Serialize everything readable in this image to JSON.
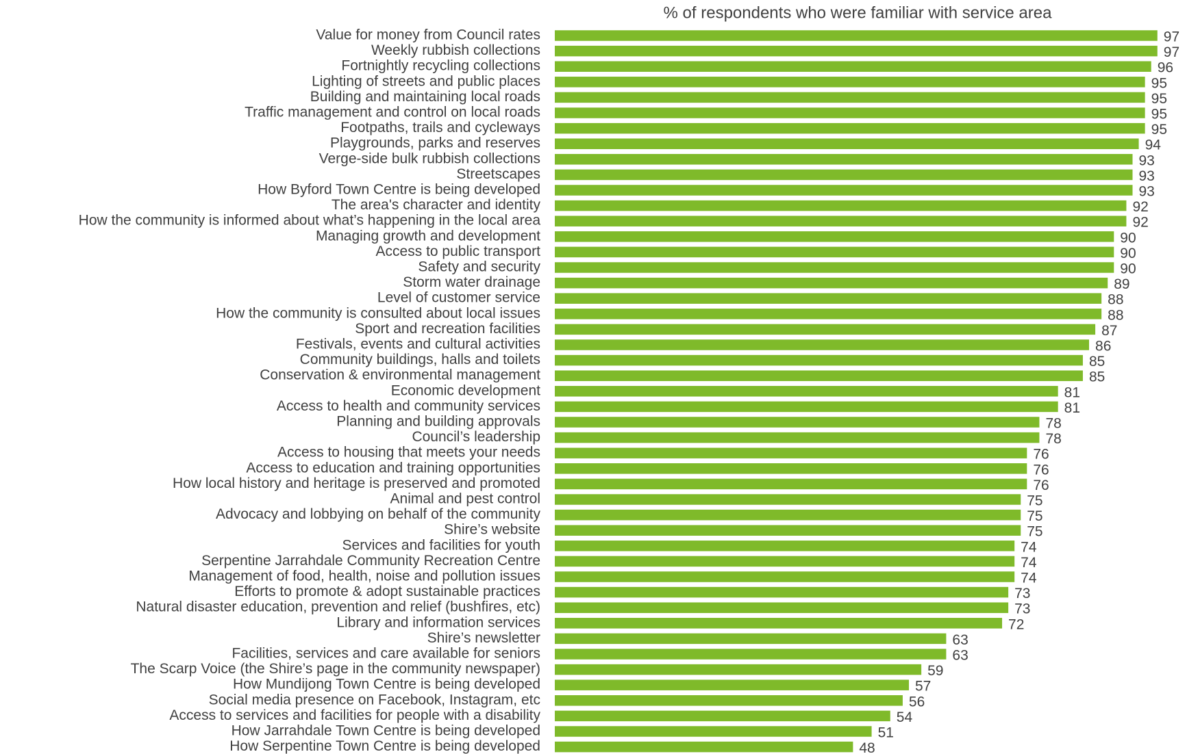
{
  "chart_data": {
    "type": "bar",
    "orientation": "horizontal",
    "title": "% of respondents who were familiar with service area",
    "color": "#7fba2a",
    "categories": [
      "Value for money from Council rates",
      "Weekly rubbish collections",
      "Fortnightly recycling collections",
      "Lighting of streets and public places",
      "Building and maintaining local roads",
      "Traffic management and control on local roads",
      "Footpaths, trails and cycleways",
      "Playgrounds, parks and reserves",
      "Verge-side bulk rubbish collections",
      "Streetscapes",
      "How Byford Town Centre is being developed",
      "The area's character and identity",
      "How the community is informed about what’s happening in the local area",
      "Managing growth and development",
      "Access to public transport",
      "Safety and security",
      "Storm water drainage",
      "Level of customer service",
      "How the community is consulted about local issues",
      "Sport and recreation facilities",
      "Festivals, events and cultural activities",
      "Community buildings, halls and toilets",
      "Conservation & environmental management",
      "Economic development",
      "Access to health and community services",
      "Planning and building approvals",
      "Council’s leadership",
      "Access to housing that meets your needs",
      "Access to education and training opportunities",
      "How local history and heritage is preserved and promoted",
      "Animal and pest control",
      "Advocacy and lobbying on behalf of the community",
      "Shire’s website",
      "Services and facilities for youth",
      "Serpentine Jarrahdale Community Recreation Centre",
      "Management of food, health, noise and pollution issues",
      "Efforts to promote & adopt sustainable practices",
      "Natural disaster education, prevention and relief (bushfires, etc)",
      "Library and information services",
      "Shire’s newsletter",
      "Facilities, services and care available for seniors",
      "The Scarp Voice (the Shire’s page in the community newspaper)",
      "How Mundijong Town Centre is being developed",
      "Social media presence on Facebook, Instagram, etc",
      "Access to services and facilities for people with a disability",
      "How Jarrahdale Town Centre is being developed",
      "How Serpentine Town Centre is being developed"
    ],
    "values": [
      97,
      97,
      96,
      95,
      95,
      95,
      95,
      94,
      93,
      93,
      93,
      92,
      92,
      90,
      90,
      90,
      89,
      88,
      88,
      87,
      86,
      85,
      85,
      81,
      81,
      78,
      78,
      76,
      76,
      76,
      75,
      75,
      75,
      74,
      74,
      74,
      73,
      73,
      72,
      63,
      63,
      59,
      57,
      56,
      54,
      51,
      48
    ]
  }
}
